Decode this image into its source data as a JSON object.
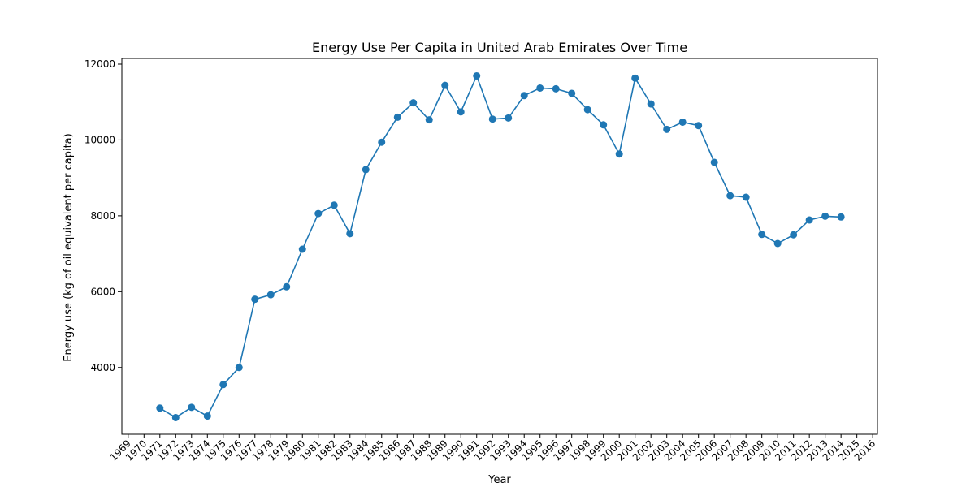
{
  "chart_data": {
    "type": "line",
    "title": "Energy Use Per Capita in United Arab Emirates Over Time",
    "xlabel": "Year",
    "ylabel": "Energy use (kg of oil equivalent per capita)",
    "xlim": [
      1968.6,
      2016.3
    ],
    "ylim": [
      2240,
      12150
    ],
    "x_ticks": [
      1969,
      1970,
      1971,
      1972,
      1973,
      1974,
      1975,
      1976,
      1977,
      1978,
      1979,
      1980,
      1981,
      1982,
      1983,
      1984,
      1985,
      1986,
      1987,
      1988,
      1989,
      1990,
      1991,
      1992,
      1993,
      1994,
      1995,
      1996,
      1997,
      1998,
      1999,
      2000,
      2001,
      2002,
      2003,
      2004,
      2005,
      2006,
      2007,
      2008,
      2009,
      2010,
      2011,
      2012,
      2013,
      2014,
      2015,
      2016
    ],
    "y_ticks": [
      4000,
      6000,
      8000,
      10000,
      12000
    ],
    "grid": false,
    "legend": "none",
    "color": "#1f77b4",
    "series": [
      {
        "x": [
          1971,
          1972,
          1973,
          1974,
          1975,
          1976,
          1977,
          1978,
          1979,
          1980,
          1981,
          1982,
          1983,
          1984,
          1985,
          1986,
          1987,
          1988,
          1989,
          1990,
          1991,
          1992,
          1993,
          1994,
          1995,
          1996,
          1997,
          1998,
          1999,
          2000,
          2001,
          2002,
          2003,
          2004,
          2005,
          2006,
          2007,
          2008,
          2009,
          2010,
          2011,
          2012,
          2013,
          2014
        ],
        "values": [
          2930,
          2680,
          2950,
          2720,
          3550,
          4000,
          5800,
          5920,
          6130,
          7120,
          8060,
          8280,
          7530,
          9220,
          9940,
          10600,
          10980,
          10530,
          11440,
          10740,
          11690,
          10550,
          10580,
          11170,
          11370,
          11350,
          11230,
          10800,
          10400,
          9630,
          11630,
          10950,
          10280,
          10470,
          10380,
          9410,
          8530,
          8490,
          7510,
          7270,
          7500,
          7890,
          7990,
          7970
        ]
      }
    ]
  }
}
